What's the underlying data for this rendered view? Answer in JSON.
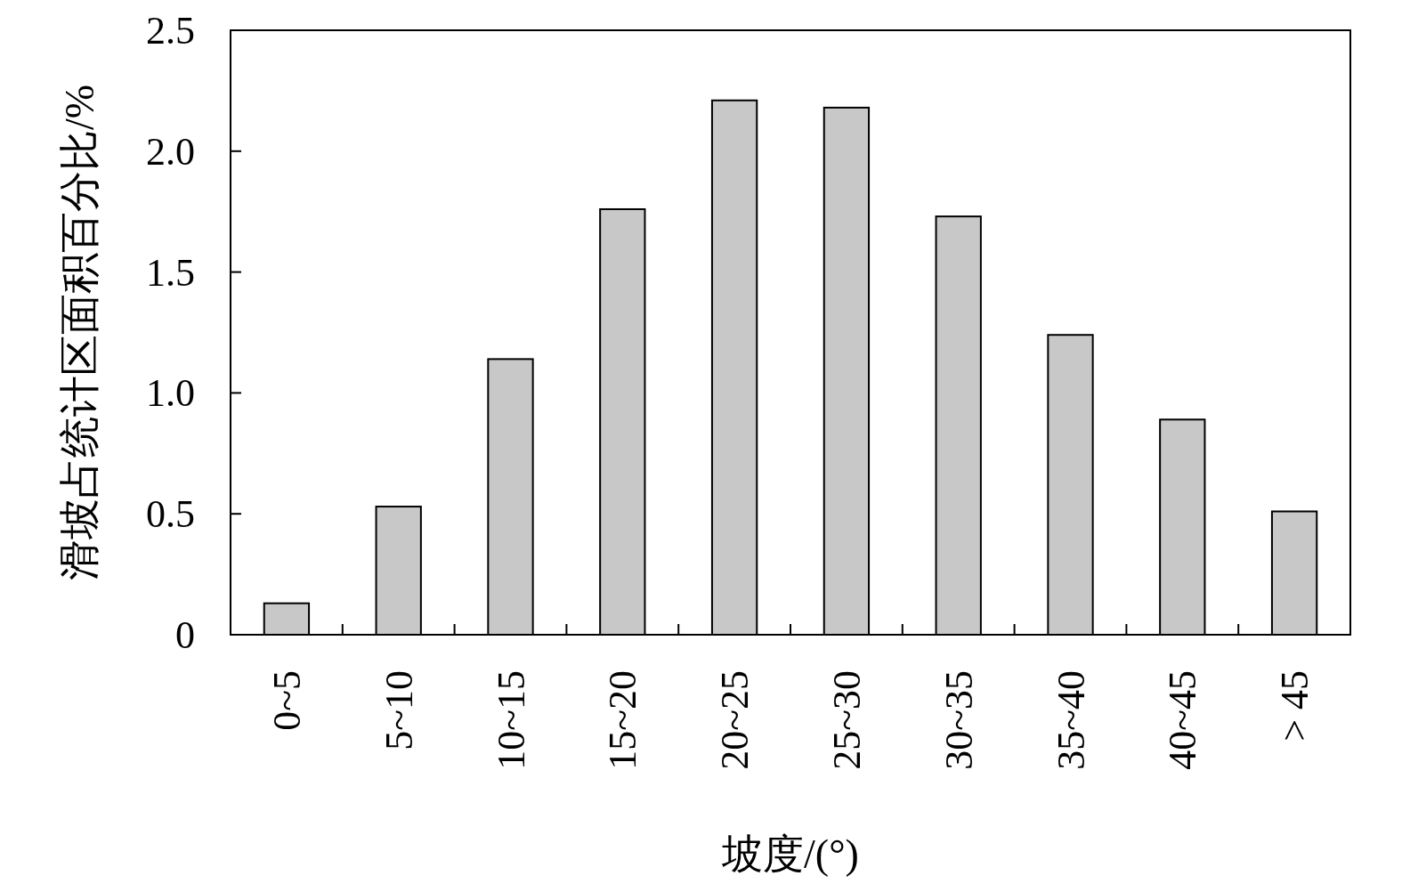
{
  "chart_data": {
    "type": "bar",
    "xlabel": "坡度/(°)",
    "ylabel": "滑坡占统计区面积百分比/%",
    "categories": [
      "0~5",
      "5~10",
      "10~15",
      "15~20",
      "20~25",
      "25~30",
      "30~35",
      "35~40",
      "40~45",
      "> 45"
    ],
    "values": [
      0.13,
      0.53,
      1.14,
      1.76,
      2.21,
      2.18,
      1.73,
      1.24,
      0.89,
      0.51
    ],
    "color": "#c8c8c8",
    "ylim": [
      0,
      2.5
    ],
    "yticks": [
      0,
      {
        "value": 0.5,
        "label": "0.5"
      },
      {
        "value": 1,
        "label": "1.0"
      },
      {
        "value": 1.5,
        "label": "1.5"
      },
      {
        "value": 2,
        "label": "2.0"
      },
      {
        "value": 2.5,
        "label": "2.5"
      }
    ]
  }
}
